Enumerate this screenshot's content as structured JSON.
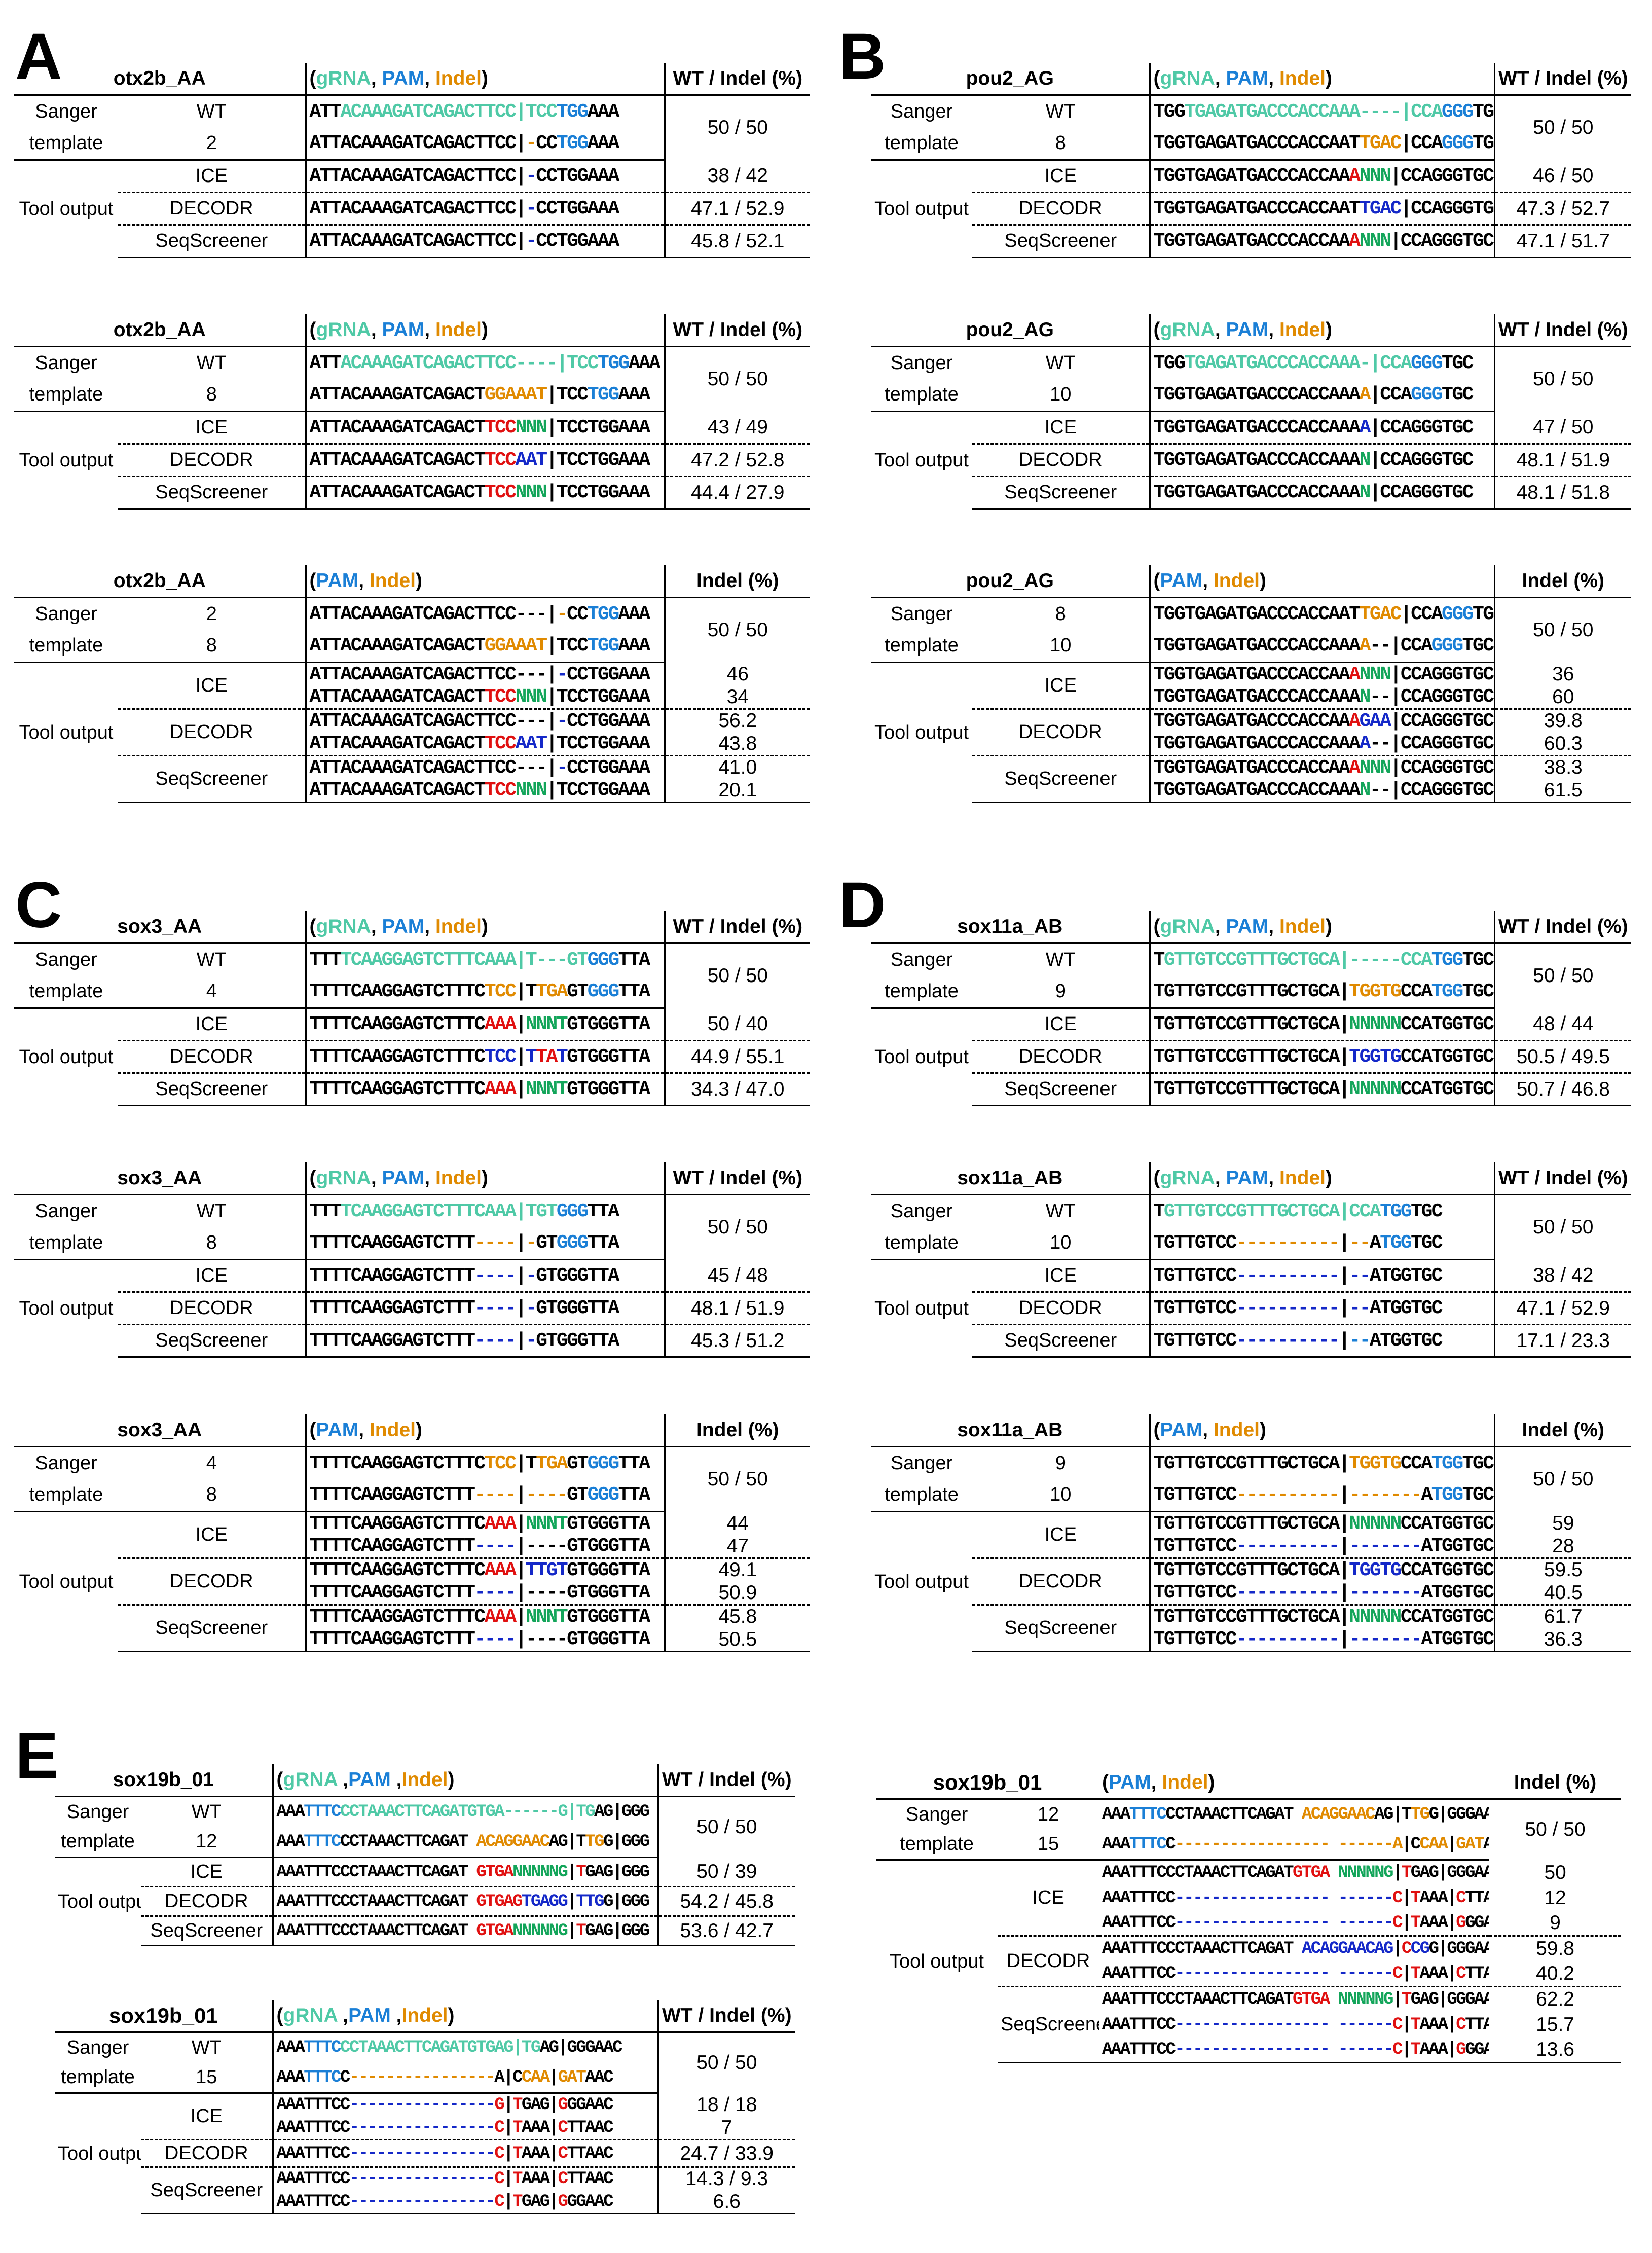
{
  "letters": {
    "a": "A",
    "b": "B",
    "c": "C",
    "d": "D",
    "e": "E"
  },
  "common": {
    "sanger": "Sanger",
    "template": "template",
    "tool_output": "Tool output",
    "ice": "ICE",
    "decodr": "DECODR",
    "seqscreener": "SeqScreener",
    "wt": "WT"
  },
  "legend": {
    "open": "(",
    "gRNA": "gRNA",
    "comma": ", ",
    "PAM": "PAM",
    "indel": "Indel",
    "close": ")",
    "wt_indel": "WT / Indel (%)",
    "indel_pct": "Indel (%)"
  },
  "A": {
    "t1": {
      "title": "otx2b_AA",
      "r2": "2",
      "res": "50 / 50",
      "ice": "38 / 42",
      "decodr": "47.1 / 52.9",
      "seq": "45.8 / 52.1"
    },
    "t2": {
      "title": "otx2b_AA",
      "r2": "8",
      "res": "50 / 50",
      "ice": "43 / 49",
      "decodr": "47.2 / 52.8",
      "seq": "44.4 / 27.9"
    },
    "t3": {
      "title": "otx2b_AA",
      "r1": "2",
      "r2": "8",
      "res": "50 / 50",
      "ice1": "46",
      "ice2": "34",
      "dec1": "56.2",
      "dec2": "43.8",
      "seq1": "41.0",
      "seq2": "20.1"
    }
  },
  "B": {
    "t1": {
      "title": "pou2_AG",
      "r2": "8",
      "res": "50 / 50",
      "ice": "46 / 50",
      "decodr": "47.3 / 52.7",
      "seq": "47.1 / 51.7"
    },
    "t2": {
      "title": "pou2_AG",
      "r2": "10",
      "res": "50 / 50",
      "ice": "47 / 50",
      "decodr": "48.1 / 51.9",
      "seq": "48.1 / 51.8"
    },
    "t3": {
      "title": "pou2_AG",
      "r1": "8",
      "r2": "10",
      "res": "50 / 50",
      "ice1": "36",
      "ice2": "60",
      "dec1": "39.8",
      "dec2": "60.3",
      "seq1": "38.3",
      "seq2": "61.5"
    }
  },
  "C": {
    "t1": {
      "title": "sox3_AA",
      "r2": "4",
      "res": "50 / 50",
      "ice": "50 / 40",
      "decodr": "44.9 / 55.1",
      "seq": "34.3 / 47.0"
    },
    "t2": {
      "title": "sox3_AA",
      "r2": "8",
      "res": "50 / 50",
      "ice": "45 / 48",
      "decodr": "48.1 / 51.9",
      "seq": "45.3 / 51.2"
    },
    "t3": {
      "title": "sox3_AA",
      "r1": "4",
      "r2": "8",
      "res": "50 / 50",
      "ice1": "44",
      "ice2": "47",
      "dec1": "49.1",
      "dec2": "50.9",
      "seq1": "45.8",
      "seq2": "50.5"
    }
  },
  "D": {
    "t1": {
      "title": "sox11a_AB",
      "r2": "9",
      "res": "50 / 50",
      "ice": "48 / 44",
      "decodr": "50.5 / 49.5",
      "seq": "50.7 / 46.8"
    },
    "t2": {
      "title": "sox11a_AB",
      "r2": "10",
      "res": "50 / 50",
      "ice": "38 / 42",
      "decodr": "47.1 / 52.9",
      "seq": "17.1 / 23.3"
    },
    "t3": {
      "title": "sox11a_AB",
      "r1": "9",
      "r2": "10",
      "res": "50 / 50",
      "ice1": "59",
      "ice2": "28",
      "dec1": "59.5",
      "dec2": "40.5",
      "seq1": "61.7",
      "seq2": "36.3"
    }
  },
  "E": {
    "t1": {
      "title": "sox19b_01",
      "r2": "12",
      "res": "50 / 50",
      "ice": "50 / 39",
      "decodr": "54.2 / 45.8",
      "seq": "53.6 / 42.7"
    },
    "t2": {
      "title": "sox19b_01",
      "r2": "15",
      "res": "50 / 50",
      "ice1": "18 / 18",
      "ice2": "7",
      "decodr": "24.7 / 33.9",
      "seq1": "14.3 / 9.3",
      "seq2": "6.6"
    },
    "t3": {
      "title": "sox19b_01",
      "r1": "12",
      "r2": "15",
      "res": "50 / 50",
      "ice1": "50",
      "ice2": "12",
      "ice3": "9",
      "dec1": "59.8",
      "dec2": "40.2",
      "seq1": "62.2",
      "seq2": "15.7",
      "seq3": "13.6"
    }
  }
}
